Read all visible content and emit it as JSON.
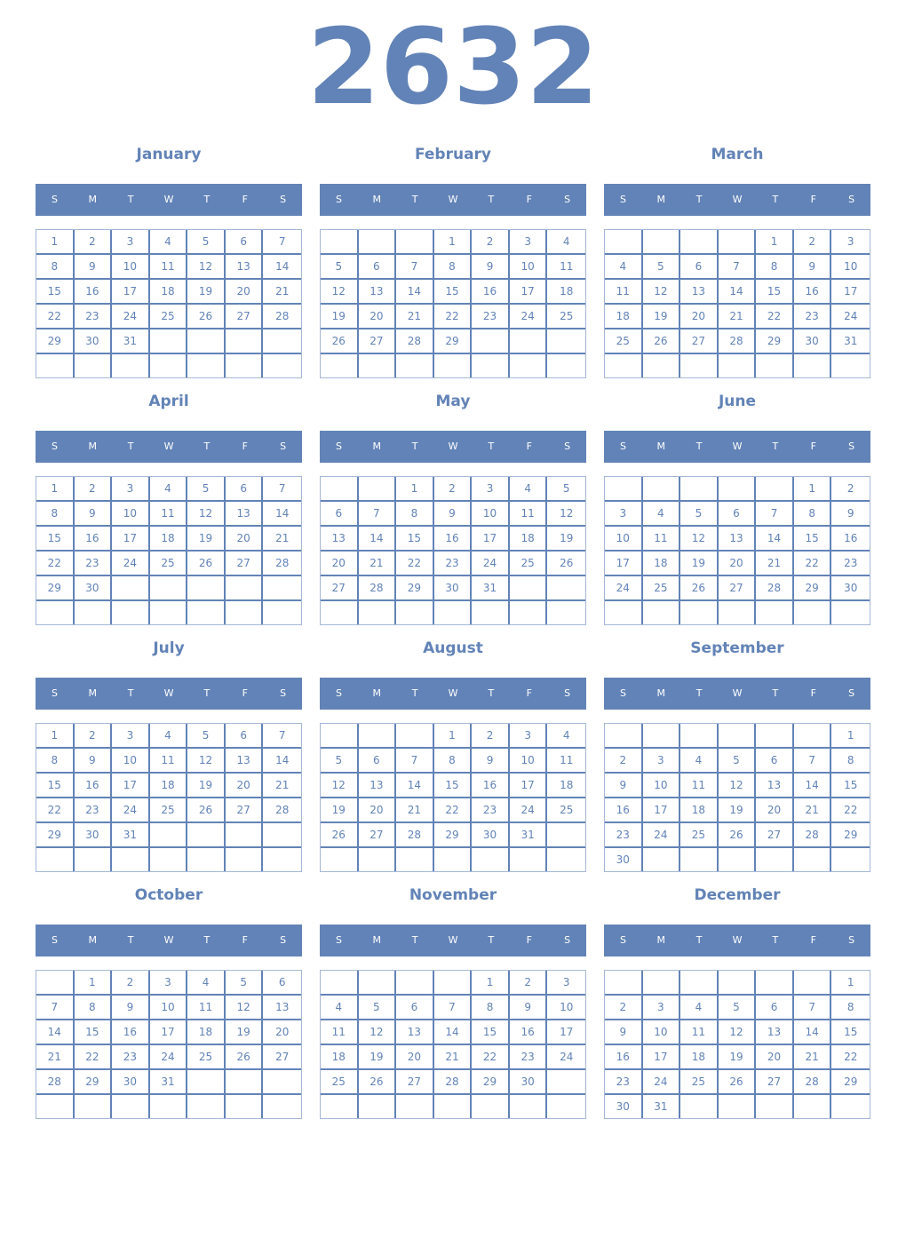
{
  "year": "2632",
  "colors": {
    "accent": "#6283b7",
    "header_text": "#ffffff",
    "grid_border": "#a5b8d6"
  },
  "weekdays": [
    "S",
    "M",
    "T",
    "W",
    "T",
    "F",
    "S"
  ],
  "months": [
    {
      "name": "January",
      "first_weekday": 0,
      "days": 31
    },
    {
      "name": "February",
      "first_weekday": 3,
      "days": 29
    },
    {
      "name": "March",
      "first_weekday": 4,
      "days": 31
    },
    {
      "name": "April",
      "first_weekday": 0,
      "days": 30
    },
    {
      "name": "May",
      "first_weekday": 2,
      "days": 31
    },
    {
      "name": "June",
      "first_weekday": 5,
      "days": 30
    },
    {
      "name": "July",
      "first_weekday": 0,
      "days": 31
    },
    {
      "name": "August",
      "first_weekday": 3,
      "days": 31
    },
    {
      "name": "September",
      "first_weekday": 6,
      "days": 30
    },
    {
      "name": "October",
      "first_weekday": 1,
      "days": 31
    },
    {
      "name": "November",
      "first_weekday": 4,
      "days": 30
    },
    {
      "name": "December",
      "first_weekday": 6,
      "days": 31
    }
  ]
}
